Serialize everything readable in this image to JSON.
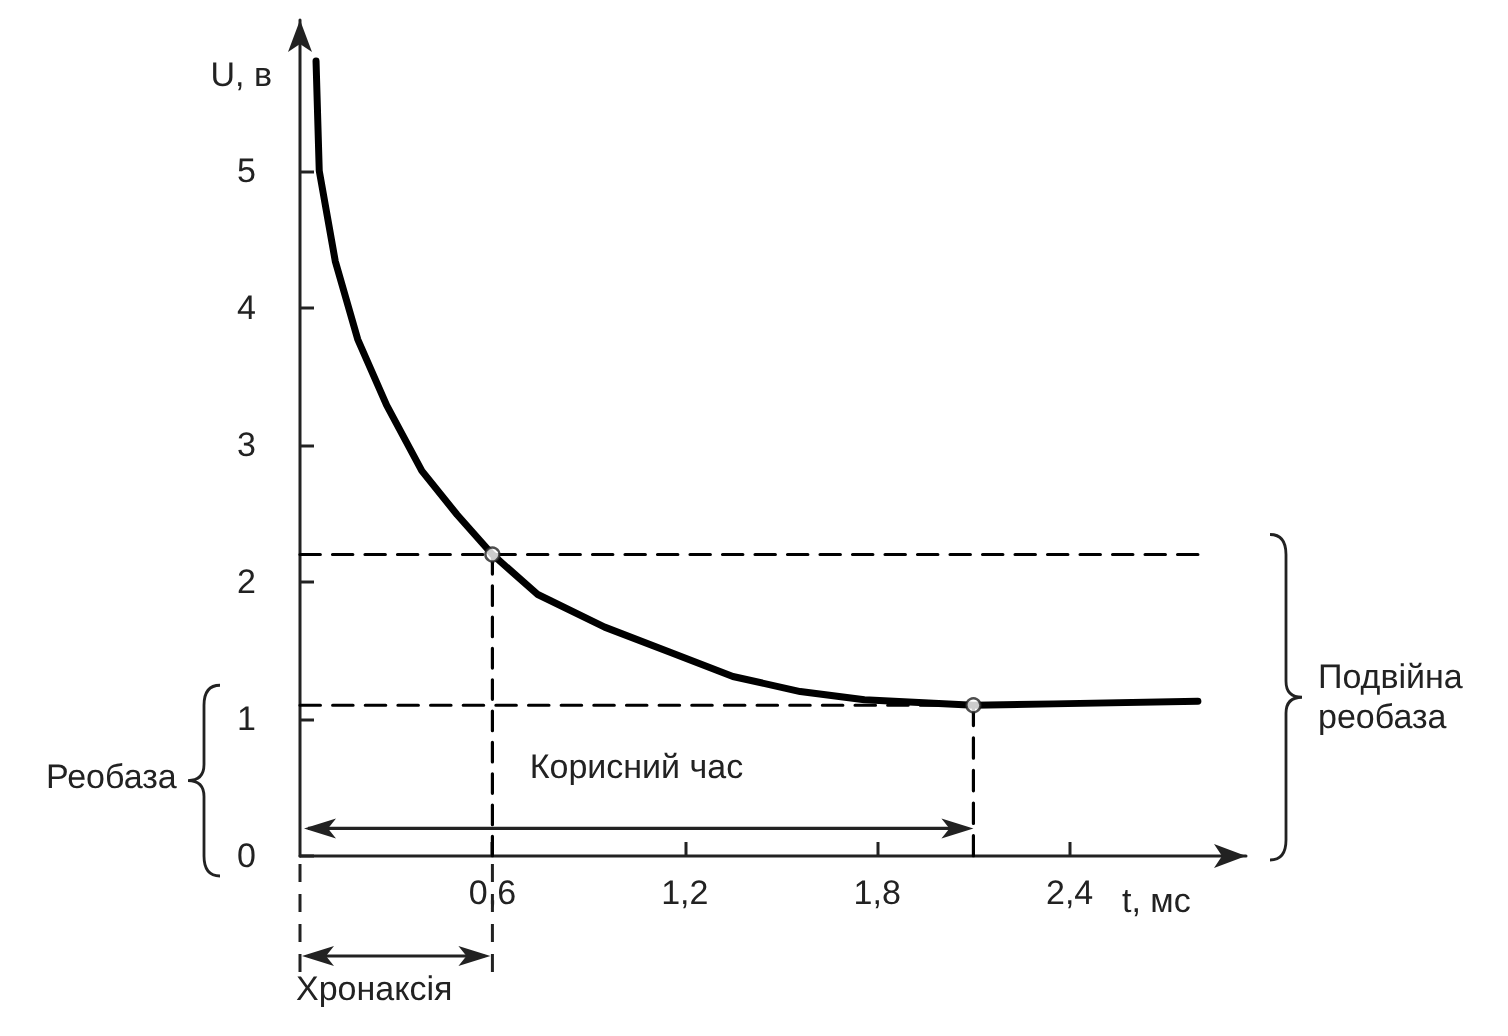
{
  "chart_data": {
    "type": "line",
    "xlabel": "t, мс",
    "ylabel": "U, в",
    "xlim": [
      0,
      2.95
    ],
    "ylim": [
      0,
      6.1
    ],
    "xticks": [
      {
        "value": 0.6,
        "label": "0,6"
      },
      {
        "value": 1.2,
        "label": "1,2"
      },
      {
        "value": 1.8,
        "label": "1,8"
      },
      {
        "value": 2.4,
        "label": "2,4"
      }
    ],
    "yticks": [
      0,
      1,
      2,
      3,
      4,
      5
    ],
    "grid": false,
    "series": [
      {
        "color": "#000000",
        "line_style": "solid",
        "marker": "none",
        "x": [
          0.05,
          0.06,
          0.11,
          0.18,
          0.27,
          0.38,
          0.49,
          0.6,
          0.74,
          0.95,
          1.15,
          1.35,
          1.56,
          1.76,
          2.1,
          2.35,
          2.8
        ],
        "values": [
          5.8,
          5.0,
          4.34,
          3.77,
          3.29,
          2.81,
          2.49,
          2.2,
          1.91,
          1.67,
          1.49,
          1.31,
          1.2,
          1.14,
          1.1,
          1.11,
          1.13
        ]
      },
      {
        "color": "#000000",
        "line_style": "dashed",
        "marker": "none",
        "x": [
          0,
          2.8
        ],
        "values": [
          2.2,
          2.2
        ]
      },
      {
        "color": "#000000",
        "line_style": "dashed",
        "marker": "none",
        "x": [
          0.6,
          0.6
        ],
        "values": [
          0,
          2.2
        ]
      },
      {
        "color": "#000000",
        "line_style": "dashed",
        "marker": "none",
        "x": [
          0,
          2.1
        ],
        "values": [
          1.1,
          1.1
        ]
      },
      {
        "color": "#000000",
        "line_style": "dashed",
        "marker": "none",
        "x": [
          2.1,
          2.1
        ],
        "values": [
          0,
          1.1
        ]
      },
      {
        "type": "scatter",
        "color": "#ffffff",
        "marker": "circle",
        "x": [
          0.6,
          2.1
        ],
        "values": [
          2.2,
          1.1
        ]
      }
    ],
    "annotations": [
      "Корисний час",
      "Хронаксія",
      "Реобаза",
      "Подвійна реобаза"
    ]
  }
}
